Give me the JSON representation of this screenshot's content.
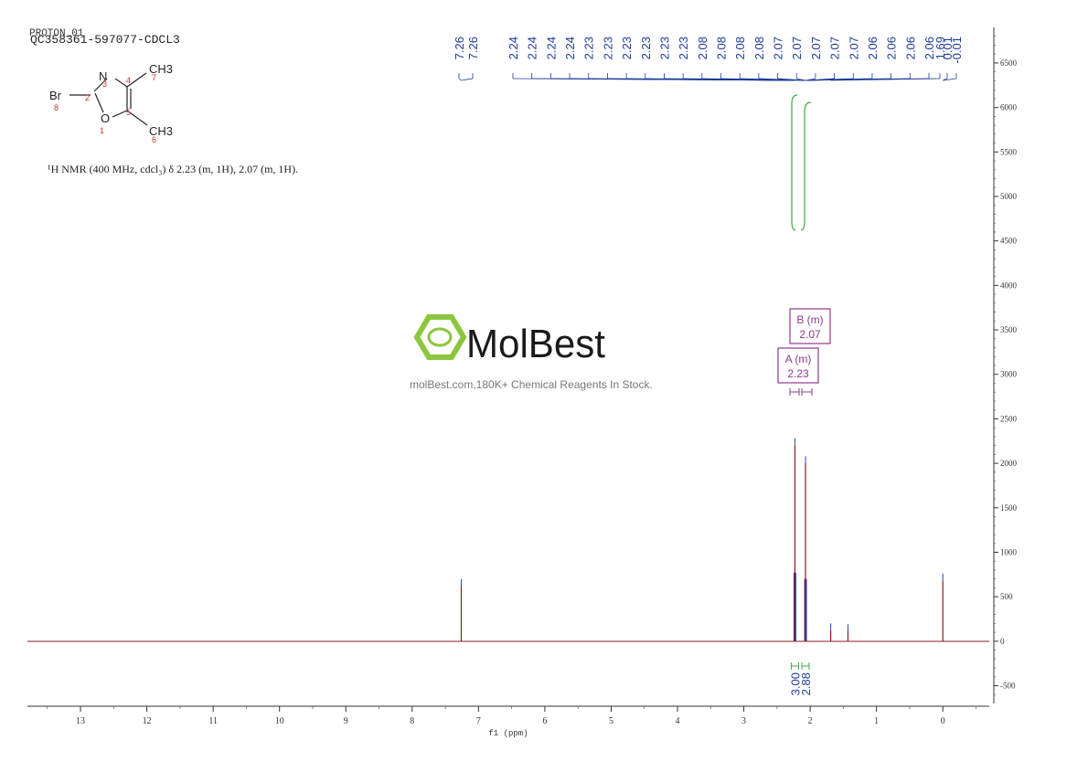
{
  "header": {
    "experiment": "PROTON_01",
    "sample_id": "QC358361-597077-CDCL3",
    "nmr_summary": "¹H NMR (400 MHz, cdcl₃) δ 2.23 (m, 1H), 2.07 (m, 1H)."
  },
  "structure": {
    "atoms": [
      {
        "id": "N",
        "label": "N"
      },
      {
        "id": "O",
        "label": "O"
      },
      {
        "id": "Br",
        "label": "Br"
      },
      {
        "id": "CH3a",
        "label": "CH3"
      },
      {
        "id": "CH3b",
        "label": "CH3"
      }
    ],
    "numbers": [
      "1",
      "2",
      "3",
      "4",
      "5",
      "6",
      "7",
      "8"
    ]
  },
  "watermark": {
    "brand": "MolBest",
    "tagline": "molBest.com,180K+ Chemical Reagents In Stock.",
    "brand_color": "#8cc63f"
  },
  "chart_data": {
    "type": "line",
    "title": "",
    "xlabel": "f1 (ppm)",
    "ylabel": "",
    "xlim": [
      13.8,
      -0.7
    ],
    "ylim": [
      -700,
      6900
    ],
    "x_ticks": [
      13,
      12,
      11,
      10,
      9,
      8,
      7,
      6,
      5,
      4,
      3,
      2,
      1,
      0
    ],
    "y_ticks": [
      -500,
      0,
      500,
      1000,
      1500,
      2000,
      2500,
      3000,
      3500,
      4000,
      4500,
      5000,
      5500,
      6000,
      6500
    ],
    "series_color": "#8b1a1a",
    "peaks": [
      {
        "ppm": 7.26,
        "height": 620
      },
      {
        "ppm": 2.23,
        "height": 2200
      },
      {
        "ppm": 2.07,
        "height": 2000
      },
      {
        "ppm": 1.69,
        "height": 120
      },
      {
        "ppm": 1.43,
        "height": 110
      },
      {
        "ppm": 0.0,
        "height": 680
      }
    ],
    "peak_labels": [
      {
        "group": "7.26",
        "labels": [
          "7.26",
          "7.26"
        ]
      },
      {
        "group": "2.2",
        "labels": [
          "2.24",
          "2.24",
          "2.24",
          "2.24",
          "2.23",
          "2.23",
          "2.23",
          "2.23",
          "2.23",
          "2.23",
          "2.08",
          "2.08",
          "2.08",
          "2.08",
          "2.07",
          "2.07",
          "2.07",
          "2.07",
          "2.07",
          "2.06",
          "2.06",
          "2.06",
          "2.06"
        ]
      },
      {
        "group": "1.69",
        "labels": [
          "1.69"
        ]
      },
      {
        "group": "0",
        "labels": [
          "0.01",
          "-0.01"
        ]
      }
    ],
    "multiplets": [
      {
        "name": "B (m)",
        "shift": "2.07",
        "ppm": 2.07
      },
      {
        "name": "A (m)",
        "shift": "2.23",
        "ppm": 2.23
      }
    ],
    "integrals": [
      {
        "ppm": 2.23,
        "value": "3.00"
      },
      {
        "ppm": 2.07,
        "value": "2.88"
      }
    ]
  }
}
